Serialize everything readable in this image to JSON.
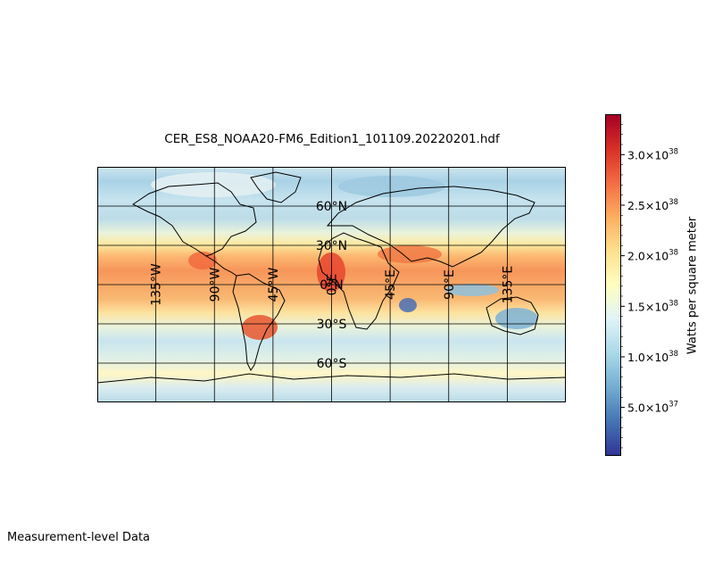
{
  "title": "CER_ES8_NOAA20-FM6_Edition1_101109.20220201.hdf",
  "footer": "Measurement-level Data",
  "map": {
    "projection": "Plate Carree",
    "extent": {
      "lon": [
        -180,
        180
      ],
      "lat": [
        -90,
        90
      ]
    },
    "gridlines": {
      "lon": [
        -135,
        -90,
        -45,
        0,
        45,
        90,
        135
      ],
      "lat": [
        -60,
        -30,
        0,
        30,
        60
      ]
    },
    "lon_labels": [
      {
        "lon": -135,
        "text": "135°W"
      },
      {
        "lon": -90,
        "text": "90°W"
      },
      {
        "lon": -45,
        "text": "45°W"
      },
      {
        "lon": 0,
        "text": "0°E"
      },
      {
        "lon": 45,
        "text": "45°E"
      },
      {
        "lon": 90,
        "text": "90°E"
      },
      {
        "lon": 135,
        "text": "135°E"
      }
    ],
    "lat_labels": [
      {
        "lat": 60,
        "text": "60°N"
      },
      {
        "lat": 30,
        "text": "30°N"
      },
      {
        "lat": 0,
        "text": "0°N"
      },
      {
        "lat": -30,
        "text": "30°S"
      },
      {
        "lat": -60,
        "text": "60°S"
      }
    ]
  },
  "colorbar": {
    "label": "Watts per square meter",
    "colormap": "RdYlBu_r",
    "colors": [
      "#313695",
      "#4575b4",
      "#74add1",
      "#abd9e9",
      "#e0f3f8",
      "#ffffbf",
      "#fee090",
      "#fdae61",
      "#f46d43",
      "#d73027",
      "#a50026"
    ],
    "range": [
      2e+36,
      3.4e+38
    ],
    "ticks": [
      {
        "value": 5e+37,
        "mantissa": "5.0",
        "exp": "37"
      },
      {
        "value": 1e+38,
        "mantissa": "1.0",
        "exp": "38"
      },
      {
        "value": 1.5e+38,
        "mantissa": "1.5",
        "exp": "38"
      },
      {
        "value": 2e+38,
        "mantissa": "2.0",
        "exp": "38"
      },
      {
        "value": 2.5e+38,
        "mantissa": "2.5",
        "exp": "38"
      },
      {
        "value": 3e+38,
        "mantissa": "3.0",
        "exp": "38"
      }
    ]
  }
}
